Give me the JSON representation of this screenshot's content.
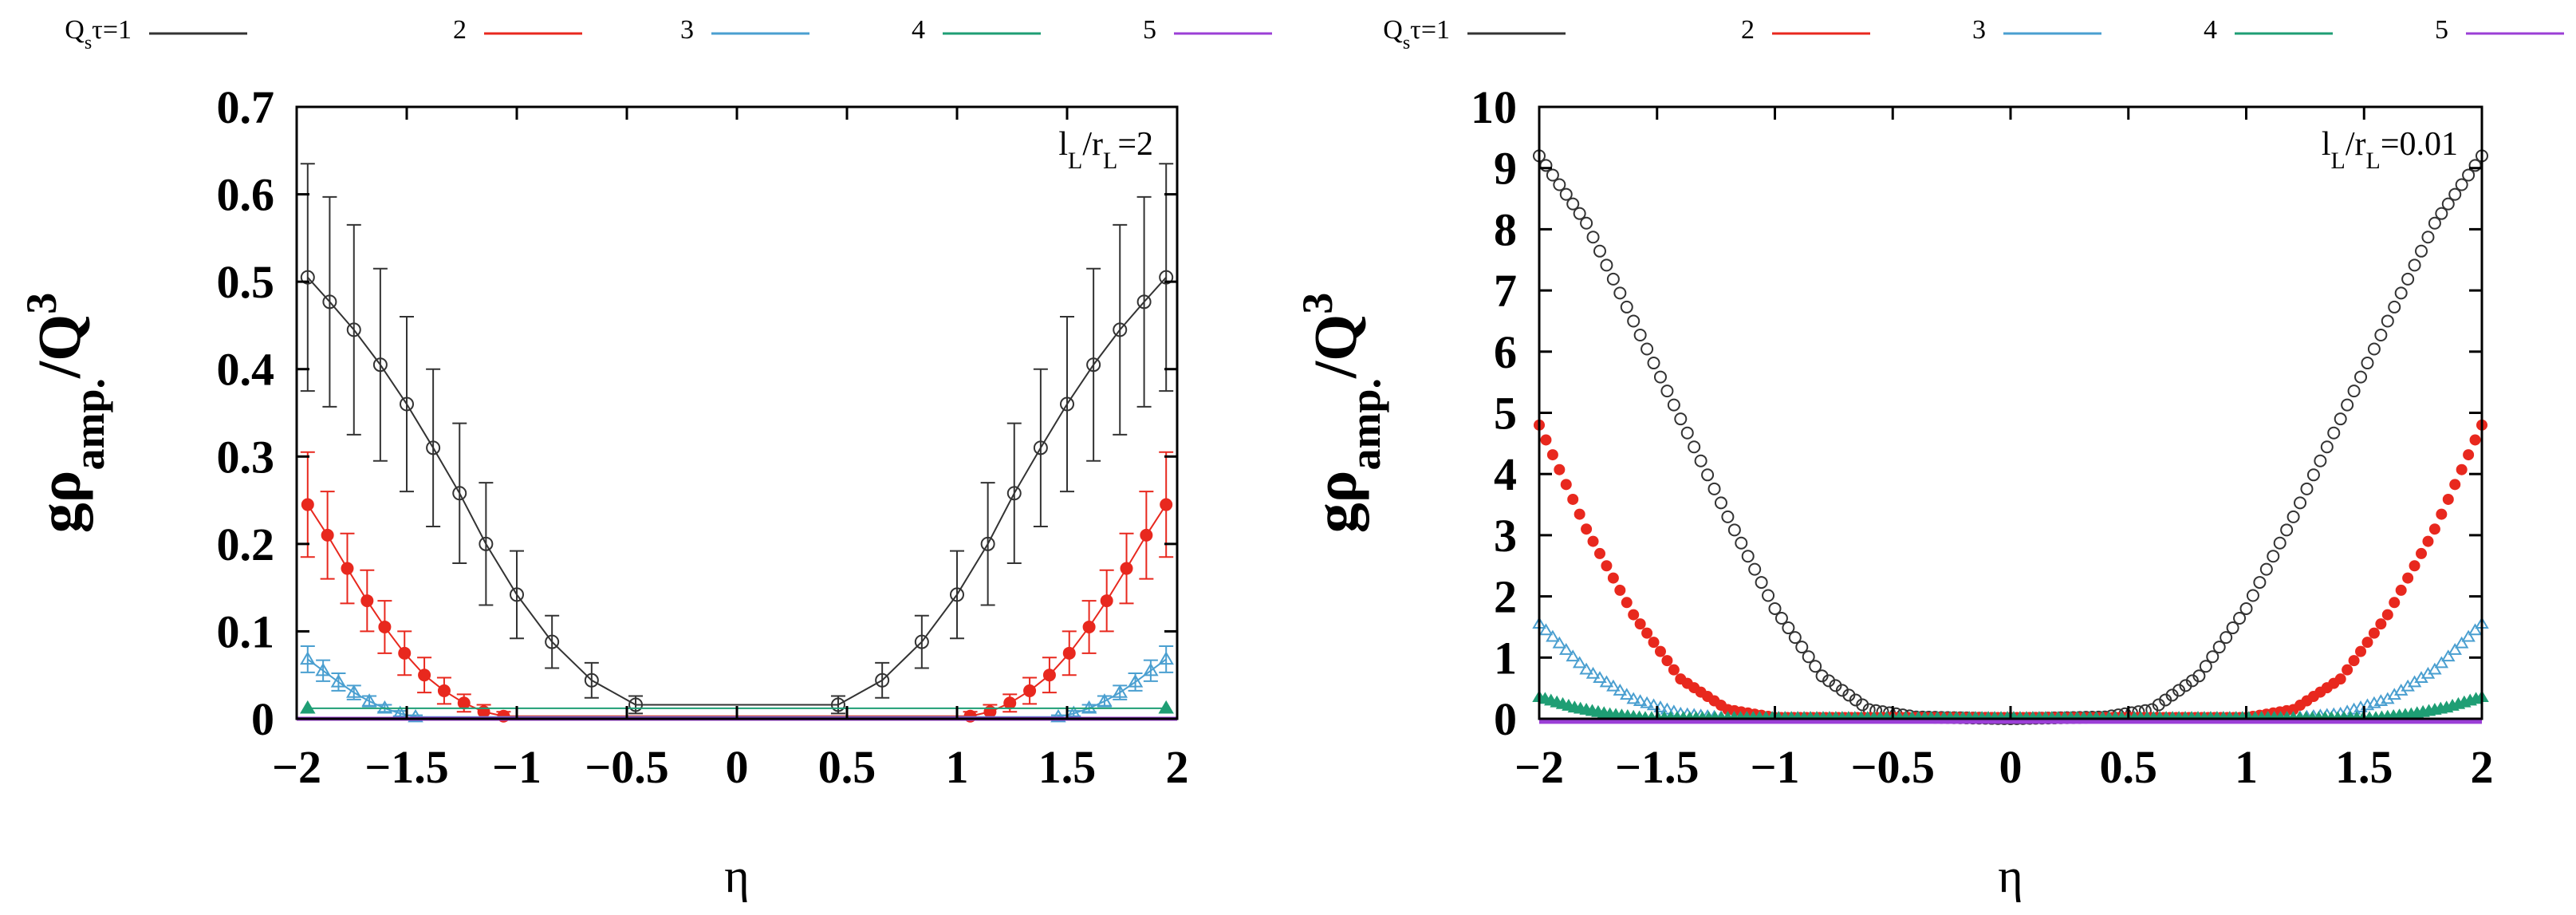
{
  "chart_data": [
    {
      "type": "line",
      "annotation": "l_L/r_L=2",
      "annotation_parts": {
        "a": "l",
        "a_sub": "L",
        "sep": "/r",
        "b_sub": "L",
        "tail": "=2"
      },
      "xlabel": "η",
      "ylabel": {
        "base": "gρ",
        "sub": "amp.",
        "slash": "/Q",
        "sup": "3"
      },
      "xlim": [
        -2,
        2
      ],
      "ylim": [
        0,
        0.7
      ],
      "xticks": [
        "−2",
        "−1.5",
        "−1",
        "−0.5",
        "0",
        "0.5",
        "1",
        "1.5",
        "2"
      ],
      "yticks": [
        "0",
        "0.1",
        "0.2",
        "0.3",
        "0.4",
        "0.5",
        "0.6",
        "0.7"
      ],
      "legend": [
        {
          "label": "Q",
          "label_sub": "s",
          "label_tail": "τ=1",
          "color": "#333333"
        },
        {
          "label": "2",
          "color": "#e8281e"
        },
        {
          "label": "3",
          "color": "#4a9fd0"
        },
        {
          "label": "4",
          "color": "#1e9e74"
        },
        {
          "label": "5",
          "color": "#9b3fd6"
        }
      ],
      "series": [
        {
          "name": "Qsτ=1",
          "color": "#333333",
          "marker": "open-circle",
          "x": [
            -1.95,
            -1.85,
            -1.74,
            -1.62,
            -1.5,
            -1.38,
            -1.26,
            -1.14,
            -1.0,
            -0.84,
            -0.66,
            -0.46,
            0.46,
            0.66,
            0.84,
            1.0,
            1.14,
            1.26,
            1.38,
            1.5,
            1.62,
            1.74,
            1.85,
            1.95
          ],
          "y": [
            0.505,
            0.477,
            0.445,
            0.405,
            0.36,
            0.31,
            0.258,
            0.2,
            0.142,
            0.088,
            0.044,
            0.016,
            0.016,
            0.044,
            0.088,
            0.142,
            0.2,
            0.258,
            0.31,
            0.36,
            0.405,
            0.445,
            0.477,
            0.505
          ],
          "err": [
            0.13,
            0.12,
            0.12,
            0.11,
            0.1,
            0.09,
            0.08,
            0.07,
            0.05,
            0.03,
            0.02,
            0.01,
            0.01,
            0.02,
            0.03,
            0.05,
            0.07,
            0.08,
            0.09,
            0.1,
            0.11,
            0.12,
            0.12,
            0.13
          ]
        },
        {
          "name": "2",
          "color": "#e8281e",
          "marker": "filled-circle",
          "x": [
            -1.95,
            -1.86,
            -1.77,
            -1.68,
            -1.6,
            -1.51,
            -1.42,
            -1.33,
            -1.24,
            -1.15,
            -1.06,
            1.06,
            1.15,
            1.24,
            1.33,
            1.42,
            1.51,
            1.6,
            1.68,
            1.77,
            1.86,
            1.95
          ],
          "y": [
            0.245,
            0.21,
            0.172,
            0.135,
            0.105,
            0.075,
            0.05,
            0.032,
            0.018,
            0.008,
            0.003,
            0.003,
            0.008,
            0.018,
            0.032,
            0.05,
            0.075,
            0.105,
            0.135,
            0.172,
            0.21,
            0.245
          ],
          "err": [
            0.06,
            0.05,
            0.04,
            0.035,
            0.03,
            0.025,
            0.02,
            0.015,
            0.01,
            0.008,
            0.005,
            0.005,
            0.008,
            0.01,
            0.015,
            0.02,
            0.025,
            0.03,
            0.035,
            0.04,
            0.05,
            0.06
          ]
        },
        {
          "name": "3",
          "color": "#4a9fd0",
          "marker": "open-triangle",
          "x": [
            -1.95,
            -1.88,
            -1.81,
            -1.74,
            -1.67,
            -1.6,
            -1.53,
            -1.46,
            1.46,
            1.53,
            1.6,
            1.67,
            1.74,
            1.81,
            1.88,
            1.95
          ],
          "y": [
            0.068,
            0.055,
            0.042,
            0.03,
            0.02,
            0.012,
            0.006,
            0.002,
            0.002,
            0.006,
            0.012,
            0.02,
            0.03,
            0.042,
            0.055,
            0.068
          ],
          "err": [
            0.015,
            0.012,
            0.01,
            0.008,
            0.006,
            0.004,
            0.003,
            0.002,
            0.002,
            0.003,
            0.004,
            0.006,
            0.008,
            0.01,
            0.012,
            0.015
          ]
        },
        {
          "name": "4",
          "color": "#1e9e74",
          "marker": "filled-triangle",
          "x": [
            -1.95,
            1.95
          ],
          "y": [
            0.012,
            0.012
          ]
        },
        {
          "name": "5",
          "color": "#9b3fd6",
          "marker": "line",
          "x": [
            -2,
            2
          ],
          "y": [
            0.0,
            0.0
          ]
        }
      ]
    },
    {
      "type": "line",
      "annotation": "l_L/r_L=0.01",
      "annotation_parts": {
        "a": "l",
        "a_sub": "L",
        "sep": "/r",
        "b_sub": "L",
        "tail": "=0.01"
      },
      "xlabel": "η",
      "ylabel": {
        "base": "gρ",
        "sub": "amp.",
        "slash": "/Q",
        "sup": "3"
      },
      "xlim": [
        -2,
        2
      ],
      "ylim": [
        0,
        10
      ],
      "xticks": [
        "−2",
        "−1.5",
        "−1",
        "−0.5",
        "0",
        "0.5",
        "1",
        "1.5",
        "2"
      ],
      "yticks": [
        "0",
        "1",
        "2",
        "3",
        "4",
        "5",
        "6",
        "7",
        "8",
        "9",
        "10"
      ],
      "legend": [
        {
          "label": "Q",
          "label_sub": "s",
          "label_tail": "τ=1",
          "color": "#333333"
        },
        {
          "label": "2",
          "color": "#e8281e"
        },
        {
          "label": "3",
          "color": "#4a9fd0"
        },
        {
          "label": "4",
          "color": "#1e9e74"
        },
        {
          "label": "5",
          "color": "#9b3fd6"
        }
      ],
      "series": [
        {
          "name": "Qsτ=1",
          "color": "#333333",
          "marker": "dense-open-circle",
          "x": [
            -2.0,
            -1.8,
            -1.6,
            -1.4,
            -1.2,
            -1.0,
            -0.8,
            -0.6,
            -0.4,
            0.0,
            0.4,
            0.6,
            0.8,
            1.0,
            1.2,
            1.4,
            1.6,
            1.8,
            2.0
          ],
          "y": [
            9.2,
            8.1,
            6.5,
            4.9,
            3.3,
            1.8,
            0.7,
            0.15,
            0.03,
            0.0,
            0.03,
            0.15,
            0.7,
            1.8,
            3.3,
            4.9,
            6.5,
            8.1,
            9.2
          ]
        },
        {
          "name": "2",
          "color": "#e8281e",
          "marker": "dense-filled-circle",
          "x": [
            -2.0,
            -1.8,
            -1.6,
            -1.4,
            -1.2,
            -1.0,
            1.0,
            1.2,
            1.4,
            1.6,
            1.8,
            2.0
          ],
          "y": [
            4.8,
            3.1,
            1.7,
            0.65,
            0.15,
            0.02,
            0.02,
            0.15,
            0.65,
            1.7,
            3.1,
            4.8
          ]
        },
        {
          "name": "3",
          "color": "#4a9fd0",
          "marker": "dense-open-triangle",
          "x": [
            -2.0,
            -1.8,
            -1.6,
            -1.4,
            -1.2,
            1.2,
            1.4,
            1.6,
            1.8,
            2.0
          ],
          "y": [
            1.55,
            0.8,
            0.32,
            0.08,
            0.01,
            0.01,
            0.08,
            0.32,
            0.8,
            1.55
          ]
        },
        {
          "name": "4",
          "color": "#1e9e74",
          "marker": "dense-filled-triangle",
          "x": [
            -2.0,
            -1.85,
            -1.7,
            -1.55,
            1.55,
            1.7,
            1.85,
            2.0
          ],
          "y": [
            0.35,
            0.18,
            0.07,
            0.01,
            0.01,
            0.07,
            0.18,
            0.35
          ]
        },
        {
          "name": "5",
          "color": "#9b3fd6",
          "marker": "line",
          "x": [
            -2,
            2
          ],
          "y": [
            -0.05,
            -0.05
          ]
        }
      ]
    }
  ]
}
